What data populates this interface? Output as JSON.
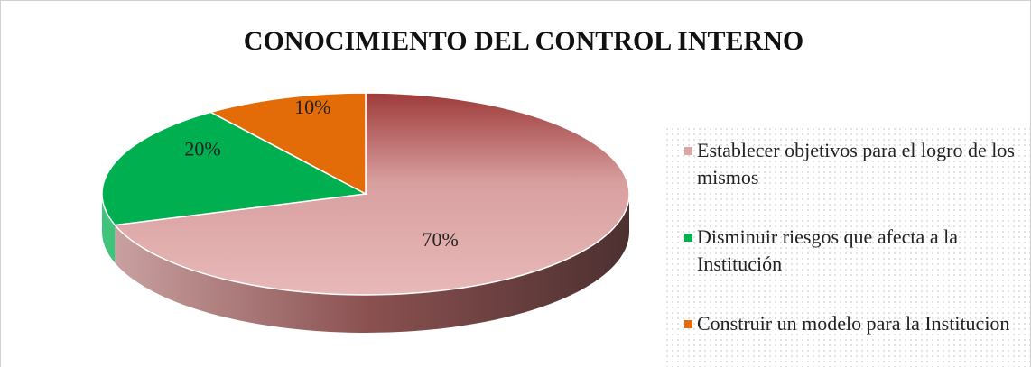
{
  "chart_data": {
    "type": "pie3d",
    "title": "CONOCIMIENTO DEL CONTROL INTERNO",
    "categories": [
      "Establecer objetivos para el logro de los mismos",
      "Disminuir riesgos que afecta a la Institución",
      "Construir un modelo para la Institucion"
    ],
    "values": [
      70,
      20,
      10
    ],
    "value_labels": [
      "70%",
      "20%",
      "10%"
    ],
    "colors": [
      "#dba6a6",
      "#00b050",
      "#e36c09"
    ],
    "legend": "right"
  }
}
